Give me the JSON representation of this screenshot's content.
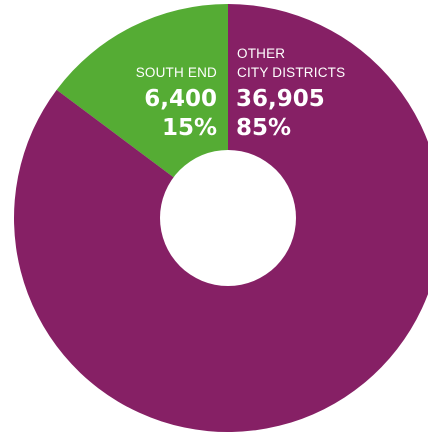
{
  "chart_data": {
    "type": "pie",
    "donut": true,
    "title": "",
    "slices": [
      {
        "label_lines": [
          "SOUTH END"
        ],
        "value": 6400,
        "value_text": "6,400",
        "percent": 15,
        "percent_text": "15%",
        "color": "#55ac34"
      },
      {
        "label_lines": [
          "OTHER",
          "CITY DISTRICTS"
        ],
        "value": 36905,
        "value_text": "36,905",
        "percent": 85,
        "percent_text": "85%",
        "color": "#862065"
      }
    ],
    "label_color": "#ffffff",
    "hole_color": "#ffffff"
  }
}
